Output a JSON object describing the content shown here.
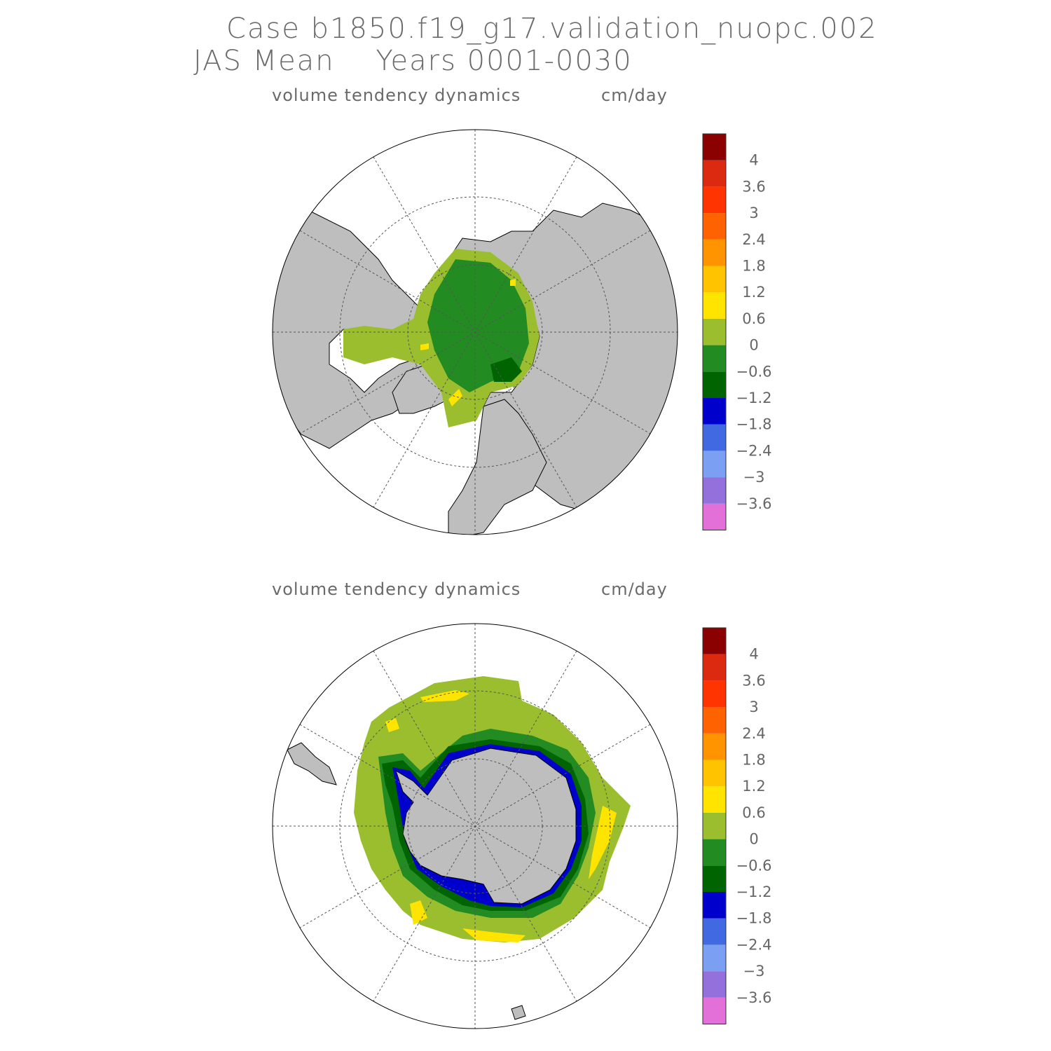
{
  "figure": {
    "title_line1": "Case b1850.f19_g17.validation_nuopc.002",
    "title_line2": "JAS Mean    Years 0001-0030"
  },
  "panels": [
    {
      "hemisphere": "north",
      "field_label": "volume tendency dynamics",
      "units_label": "cm/day"
    },
    {
      "hemisphere": "south",
      "field_label": "volume tendency dynamics",
      "units_label": "cm/day"
    }
  ],
  "colorbar": {
    "colors": [
      "#e36fd9",
      "#9370db",
      "#7b9ff2",
      "#4169e1",
      "#0000cd",
      "#006400",
      "#228b22",
      "#9abe2d",
      "#ffe400",
      "#ffc300",
      "#ff9400",
      "#ff6200",
      "#ff3400",
      "#db2a10",
      "#8b0000"
    ],
    "tick_labels": [
      "−3.6",
      "−3",
      "−2.4",
      "−1.8",
      "−1.2",
      "−0.6",
      "0",
      "0.6",
      "1.2",
      "1.8",
      "2.4",
      "3",
      "3.6",
      "4"
    ]
  },
  "map_colors": {
    "land": "#bebebe",
    "ocean": "#ffffff",
    "grid": "#555555"
  }
}
